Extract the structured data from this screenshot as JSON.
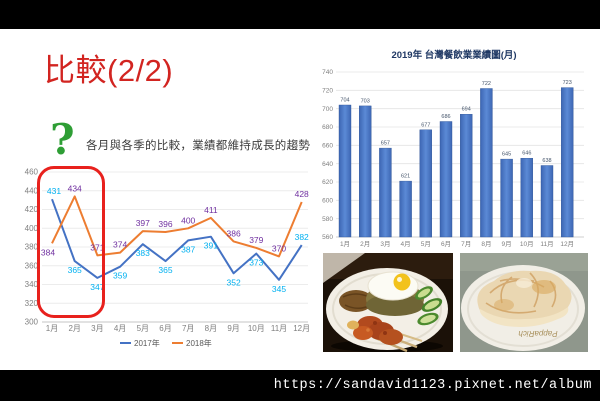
{
  "slide": {
    "title": "比較(2/2)",
    "note": {
      "icon": "?",
      "text": "各月與各季的比較，業績都維持成長的趨勢"
    },
    "photo_brand": "PappaRich",
    "footer_url": "https://sandavid1123.pixnet.net/album"
  },
  "colors": {
    "title_red": "#d22420",
    "highlight_red": "#e8211d",
    "question_green": "#2e9e35",
    "chart_title_navy": "#1f3864",
    "axis_gray": "#7f7f7f",
    "line_2017": "#4472c4",
    "line_2018": "#ed7d31",
    "label_2017": "#00b0f0",
    "label_2018": "#7030a0",
    "bar_blue": "#4472c4"
  },
  "chart_data": [
    {
      "type": "line",
      "title": "",
      "xlabel": "",
      "ylabel": "",
      "categories": [
        "1月",
        "2月",
        "3月",
        "4月",
        "5月",
        "6月",
        "7月",
        "8月",
        "9月",
        "10月",
        "11月",
        "12月"
      ],
      "series": [
        {
          "name": "2017年",
          "color": "#4472c4",
          "label_color": "#00b0f0",
          "values": [
            431,
            365,
            347,
            359,
            383,
            365,
            387,
            391,
            352,
            373,
            345,
            382
          ]
        },
        {
          "name": "2018年",
          "color": "#ed7d31",
          "label_color": "#7030a0",
          "values": [
            384,
            434,
            371,
            374,
            397,
            396,
            400,
            411,
            386,
            379,
            370,
            428
          ]
        }
      ],
      "ylim": [
        300,
        460
      ],
      "ytick_step": 20,
      "grid": true,
      "legend_position": "bottom"
    },
    {
      "type": "bar",
      "title": "2019年 台灣餐飲業業績圖(月)",
      "xlabel": "",
      "ylabel": "",
      "categories": [
        "1月",
        "2月",
        "3月",
        "4月",
        "5月",
        "6月",
        "7月",
        "8月",
        "9月",
        "10月",
        "11月",
        "12月"
      ],
      "values": [
        704,
        703,
        657,
        621,
        677,
        686,
        694,
        722,
        645,
        646,
        638,
        723
      ],
      "ylim": [
        560,
        740
      ],
      "ytick_step": 20,
      "grid": true,
      "bar_color": "#4472c4"
    }
  ]
}
